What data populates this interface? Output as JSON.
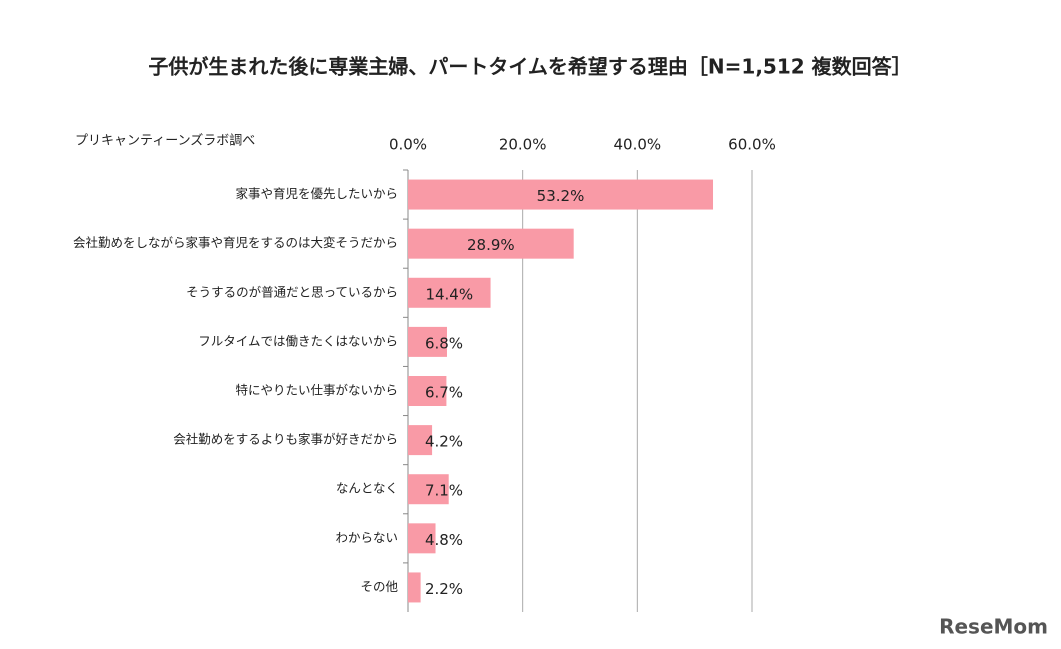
{
  "chart_data": {
    "type": "hbar",
    "title": "子供が生まれた後に専業主婦、パートタイムを希望する理由［N=1,512 複数回答］",
    "source": "プリキャンティーンズラボ調べ",
    "watermark": "ReseMom",
    "categories": [
      "家事や育児を優先したいから",
      "会社勤めをしながら家事や育児をするのは大変そうだから",
      "そうするのが普通だと思っているから",
      "フルタイムでは働きたくはないから",
      "特にやりたい仕事がないから",
      "会社勤めをするよりも家事が好きだから",
      "なんとなく",
      "わからない",
      "その他"
    ],
    "values": [
      53.2,
      28.9,
      14.4,
      6.8,
      6.7,
      4.2,
      7.1,
      4.8,
      2.2
    ],
    "value_labels": [
      "53.2%",
      "28.9%",
      "14.4%",
      "6.8%",
      "6.7%",
      "4.2%",
      "7.1%",
      "4.8%",
      "2.2%"
    ],
    "color": "#f99aa6",
    "xlim": [
      0,
      60
    ],
    "xticks": [
      {
        "value": 0,
        "label": "0.0%"
      },
      {
        "value": 20,
        "label": "20.0%"
      },
      {
        "value": 40,
        "label": "40.0%"
      },
      {
        "value": 60,
        "label": "60.0%"
      }
    ],
    "grid": true
  }
}
